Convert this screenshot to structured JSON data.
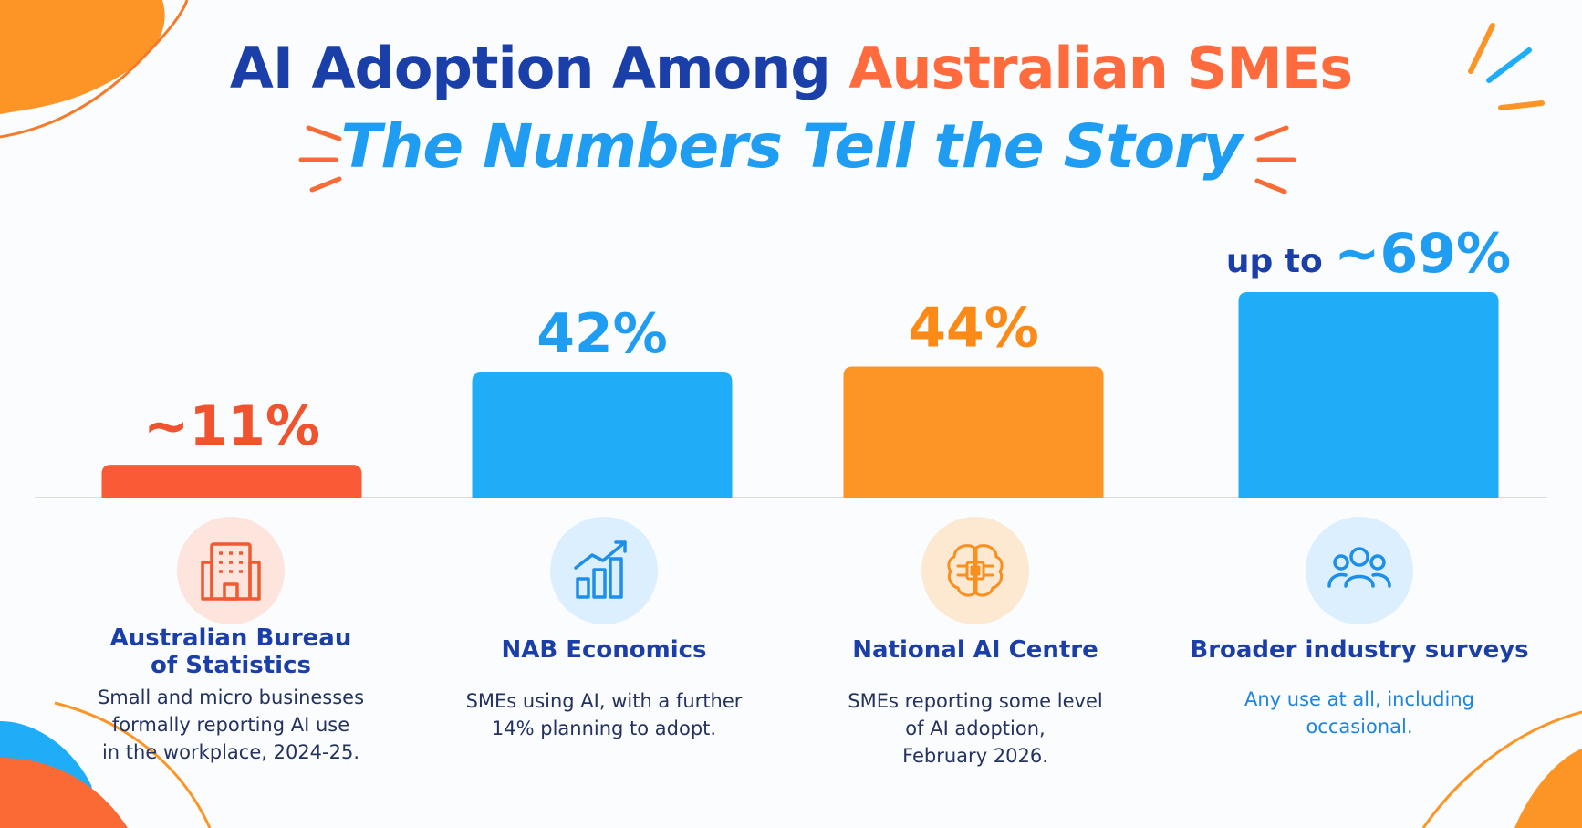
{
  "title": {
    "part1": "AI Adoption Among ",
    "part2": "Australian SMEs",
    "subtitle": "The Numbers Tell the Story"
  },
  "colors": {
    "navy": "#1a3fa8",
    "red_orange": "#fa5a35",
    "blue": "#1fadf7",
    "orange": "#fd9426"
  },
  "chart_data": {
    "type": "bar",
    "categories": [
      "Australian Bureau of Statistics",
      "NAB Economics",
      "National AI Centre",
      "Broader industry surveys"
    ],
    "values": [
      11,
      42,
      44,
      69
    ],
    "data_labels": [
      "~11%",
      "42%",
      "44%",
      "~69%"
    ],
    "data_label_prefix": [
      "",
      "",
      "",
      "up to "
    ],
    "bar_colors": [
      "#fa5a35",
      "#1fadf7",
      "#fd9426",
      "#1fadf7"
    ],
    "label_colors": [
      "#f0532d",
      "#1e9df2",
      "#fb8a17",
      "#1e9df2"
    ],
    "ylim": [
      0,
      100
    ],
    "grid": false,
    "xlabel": "",
    "ylabel": ""
  },
  "sources": [
    {
      "name_line1": "Australian Bureau",
      "name_line2": "of Statistics",
      "desc_lines": [
        "Small and micro businesses",
        "formally reporting AI use",
        "in the workplace, 2024-25."
      ],
      "icon": "building-icon"
    },
    {
      "name_line1": "NAB Economics",
      "name_line2": "",
      "desc_lines": [
        "SMEs using AI, with a further",
        "14% planning to adopt."
      ],
      "icon": "growth-chart-icon"
    },
    {
      "name_line1": "National AI Centre",
      "name_line2": "",
      "desc_lines": [
        "SMEs reporting some level",
        "of AI adoption,",
        "February 2026."
      ],
      "icon": "ai-chip-brain-icon"
    },
    {
      "name_line1": "Broader industry surveys",
      "name_line2": "",
      "desc_lines": [
        "Any use at all, including",
        "occasional."
      ],
      "icon": "people-group-icon"
    }
  ]
}
